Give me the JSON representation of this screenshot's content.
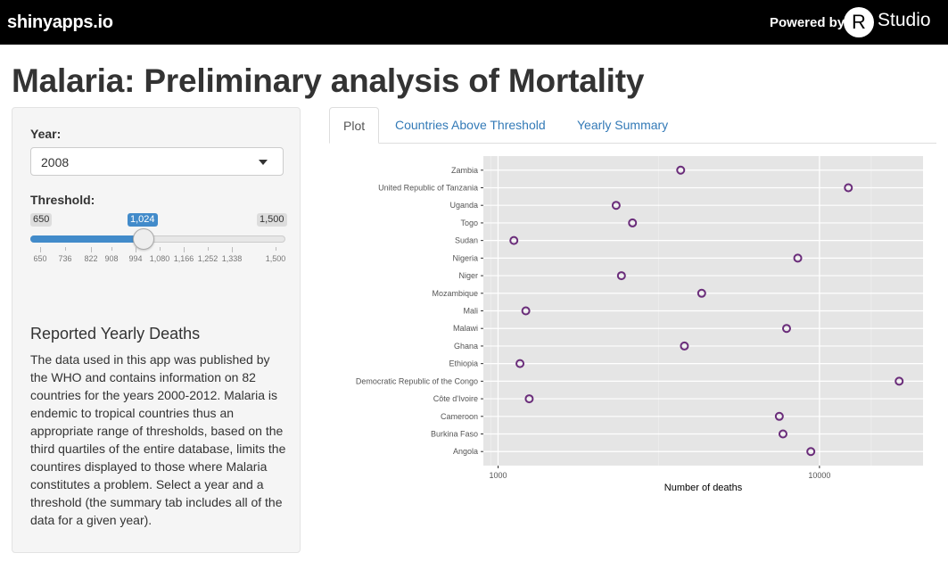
{
  "header": {
    "brand": "shinyapps.io",
    "powered_by": "Powered by",
    "logo_letter": "R",
    "logo_text": "Studio"
  },
  "page_title": "Malaria: Preliminary analysis of Mortality",
  "sidebar": {
    "year_label": "Year:",
    "year_value": "2008",
    "threshold_label": "Threshold:",
    "slider": {
      "min_label": "650",
      "max_label": "1,500",
      "value_label": "1,024",
      "min": 650,
      "max": 1500,
      "value": 1024,
      "ticks": [
        "650",
        "736",
        "822",
        "908",
        "994",
        "1,080",
        "1,166",
        "1,252",
        "1,338",
        "1,500"
      ]
    },
    "section_title": "Reported Yearly Deaths",
    "description": "The data used in this app was published by the WHO and contains information on 82 countries for the years 2000-2012. Malaria is endemic to tropical countries thus an appropriate range of thresholds, based on the third quartiles of the entire database, limits the countires displayed to those where Malaria constitutes a problem. Select a year and a threshold (the summary tab includes all of the data for a given year)."
  },
  "tabs": [
    {
      "label": "Plot",
      "active": true
    },
    {
      "label": "Countries Above Threshold",
      "active": false
    },
    {
      "label": "Yearly Summary",
      "active": false
    }
  ],
  "colors": {
    "accent": "#428bca",
    "link": "#337ab7",
    "point": "#6a2c7a",
    "panel_bg": "#e5e5e5"
  },
  "chart_data": {
    "type": "scatter",
    "xlabel": "Number of deaths",
    "x_scale": "log10",
    "xlim": [
      900,
      21000
    ],
    "x_ticks": [
      {
        "value": 1000,
        "label": "1000"
      },
      {
        "value": 10000,
        "label": "10000"
      }
    ],
    "grid": true,
    "categories": [
      "Zambia",
      "United Republic of Tanzania",
      "Uganda",
      "Togo",
      "Sudan",
      "Nigeria",
      "Niger",
      "Mozambique",
      "Mali",
      "Malawi",
      "Ghana",
      "Ethiopia",
      "Democratic Republic of the Congo",
      "Côte d'Ivoire",
      "Cameroon",
      "Burkina Faso",
      "Angola"
    ],
    "values": [
      3700,
      12300,
      2330,
      2620,
      1120,
      8560,
      2420,
      4300,
      1220,
      7900,
      3800,
      1170,
      17700,
      1250,
      7500,
      7700,
      9400
    ]
  }
}
